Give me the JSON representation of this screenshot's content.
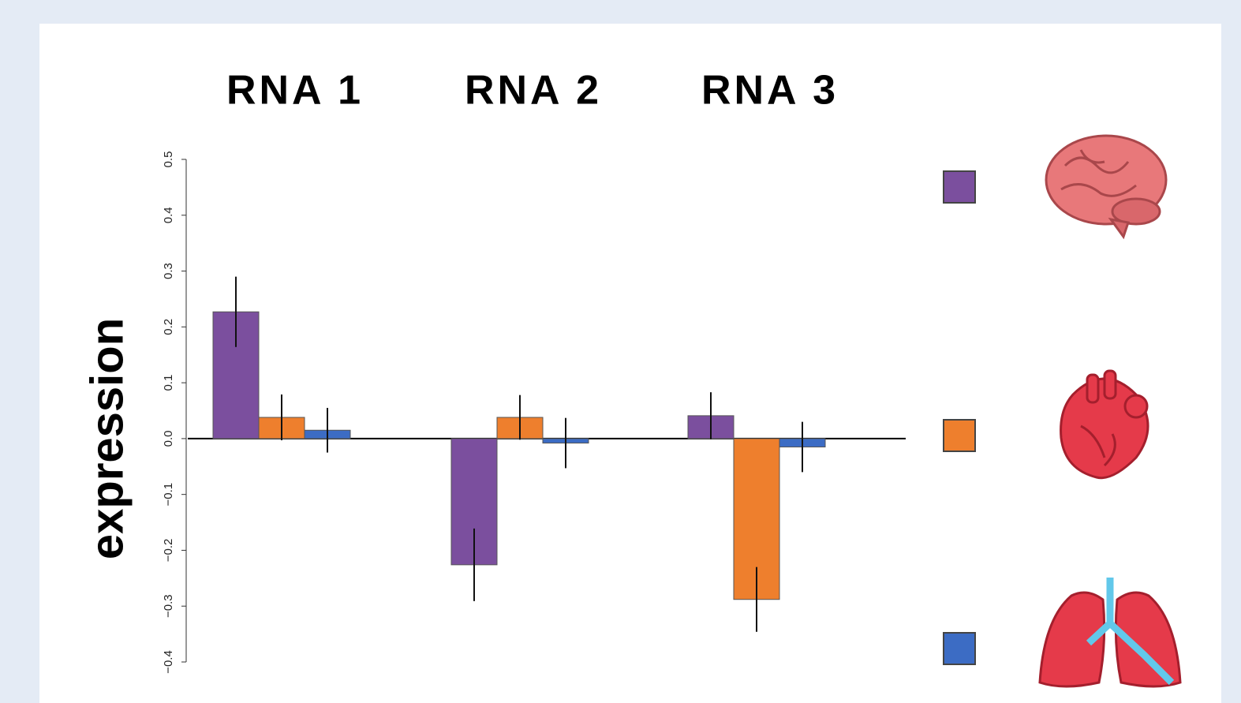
{
  "chart_data": {
    "type": "bar",
    "y_label": "expression",
    "categories": [
      "RNA 1",
      "RNA 2",
      "RNA 3"
    ],
    "series": [
      {
        "color": "#7b4f9e",
        "values": [
          0.227,
          -0.226,
          0.041
        ],
        "errors": [
          0.063,
          0.065,
          0.042
        ]
      },
      {
        "color": "#ee7f2d",
        "values": [
          0.038,
          0.038,
          -0.288
        ],
        "errors": [
          0.041,
          0.04,
          0.058
        ]
      },
      {
        "color": "#3c6cc4",
        "values": [
          0.015,
          -0.008,
          -0.015
        ],
        "errors": [
          0.04,
          0.045,
          0.045
        ]
      }
    ],
    "ylim": [
      -0.4,
      0.5
    ],
    "yticks": [
      {
        "value": -0.4,
        "label": "−0.4"
      },
      {
        "value": -0.3,
        "label": "−0.3"
      },
      {
        "value": -0.2,
        "label": "−0.2"
      },
      {
        "value": -0.1,
        "label": "−0.1"
      },
      {
        "value": 0,
        "label": "0.0"
      },
      0.1,
      0.2,
      0.3,
      0.4,
      0.5
    ],
    "grid": false
  }
}
